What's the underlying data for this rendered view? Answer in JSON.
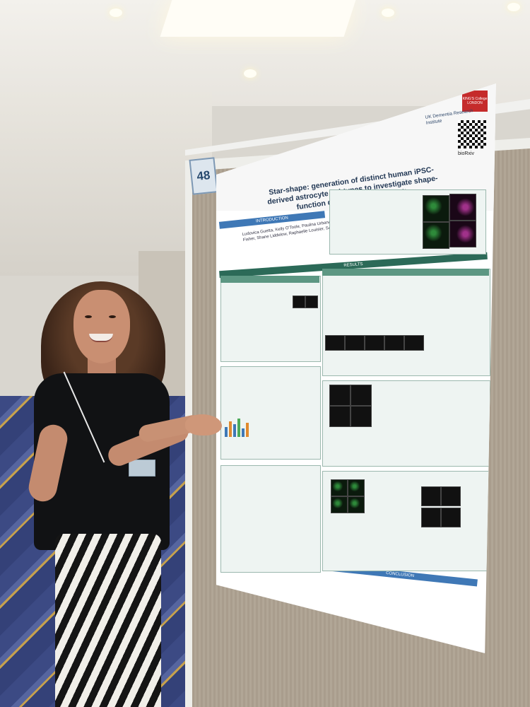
{
  "board": {
    "number": "48"
  },
  "poster": {
    "title": "Star-shape: generation of distinct human iPSC-derived astrocyte subtypes to investigate shape-function dynamics and reactivity",
    "authors": "Ludovica Guetta, Kelly O'Toole, Paulina Urbanaviciute, Pacharaporn Suklai, Chandler Wright, Theodore Fisher, Shane Liddelow, Raphaelle Louisier, Sarah Marzi, Andrea Serio",
    "institute": "UK Dementia Research Institute",
    "logo_text": "KING'S College LONDON",
    "preprint": "bioRxiv",
    "sections": {
      "introduction": "INTRODUCTION",
      "results": "RESULTS",
      "conclusion": "CONCLUSION"
    }
  },
  "colors": {
    "board_fabric": "#aca190",
    "poster_blue": "#3f78b6",
    "poster_green": "#2c6a58",
    "shirt": "#111214"
  }
}
